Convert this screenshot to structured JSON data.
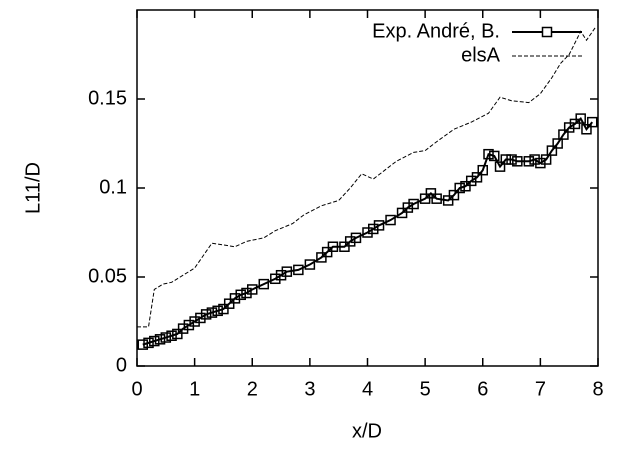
{
  "chart_data": {
    "type": "line",
    "xlabel": "x/D",
    "ylabel": "L11/D",
    "xlim": [
      0,
      8
    ],
    "ylim": [
      0,
      0.2
    ],
    "xticks": [
      0,
      1,
      2,
      3,
      4,
      5,
      6,
      7,
      8
    ],
    "yticks": [
      0,
      0.05,
      0.1,
      0.15
    ],
    "legend": "top-right",
    "series": [
      {
        "name": "Exp. André, B.",
        "color": "#000000",
        "style": "solid-square",
        "x": [
          0.1,
          0.2,
          0.3,
          0.4,
          0.5,
          0.6,
          0.7,
          0.8,
          0.9,
          1.0,
          1.1,
          1.2,
          1.3,
          1.4,
          1.5,
          1.6,
          1.7,
          1.8,
          1.9,
          2.0,
          2.2,
          2.4,
          2.5,
          2.6,
          2.8,
          3.0,
          3.2,
          3.3,
          3.4,
          3.6,
          3.7,
          3.8,
          4.0,
          4.1,
          4.2,
          4.4,
          4.6,
          4.7,
          4.8,
          5.0,
          5.1,
          5.2,
          5.4,
          5.5,
          5.6,
          5.7,
          5.8,
          5.9,
          6.0,
          6.1,
          6.2,
          6.3,
          6.4,
          6.5,
          6.6,
          6.8,
          6.9,
          7.0,
          7.1,
          7.2,
          7.3,
          7.4,
          7.5,
          7.6,
          7.7,
          7.8,
          7.9
        ],
        "values": [
          0.012,
          0.013,
          0.014,
          0.015,
          0.016,
          0.017,
          0.018,
          0.021,
          0.023,
          0.025,
          0.027,
          0.029,
          0.03,
          0.031,
          0.032,
          0.035,
          0.038,
          0.04,
          0.041,
          0.043,
          0.046,
          0.049,
          0.051,
          0.053,
          0.054,
          0.057,
          0.061,
          0.064,
          0.067,
          0.067,
          0.07,
          0.072,
          0.075,
          0.077,
          0.079,
          0.082,
          0.086,
          0.089,
          0.091,
          0.094,
          0.097,
          0.094,
          0.093,
          0.096,
          0.1,
          0.101,
          0.104,
          0.106,
          0.11,
          0.119,
          0.118,
          0.112,
          0.116,
          0.116,
          0.115,
          0.115,
          0.116,
          0.114,
          0.116,
          0.121,
          0.125,
          0.13,
          0.134,
          0.136,
          0.139,
          0.133,
          0.137
        ]
      },
      {
        "name": "elsA",
        "color": "#000000",
        "style": "dashed",
        "x": [
          0.0,
          0.2,
          0.3,
          0.45,
          0.6,
          0.8,
          1.0,
          1.15,
          1.3,
          1.5,
          1.7,
          1.9,
          2.2,
          2.4,
          2.7,
          2.9,
          3.2,
          3.5,
          3.7,
          3.9,
          4.1,
          4.3,
          4.5,
          4.8,
          5.0,
          5.2,
          5.5,
          5.8,
          6.1,
          6.3,
          6.5,
          6.8,
          7.0,
          7.2,
          7.35,
          7.5,
          7.7,
          7.8,
          7.95
        ],
        "values": [
          0.022,
          0.022,
          0.043,
          0.046,
          0.047,
          0.051,
          0.055,
          0.062,
          0.069,
          0.068,
          0.067,
          0.07,
          0.072,
          0.076,
          0.08,
          0.085,
          0.09,
          0.093,
          0.1,
          0.108,
          0.105,
          0.11,
          0.115,
          0.12,
          0.121,
          0.126,
          0.133,
          0.137,
          0.142,
          0.151,
          0.149,
          0.148,
          0.153,
          0.162,
          0.17,
          0.175,
          0.188,
          0.183,
          0.19
        ]
      }
    ]
  }
}
